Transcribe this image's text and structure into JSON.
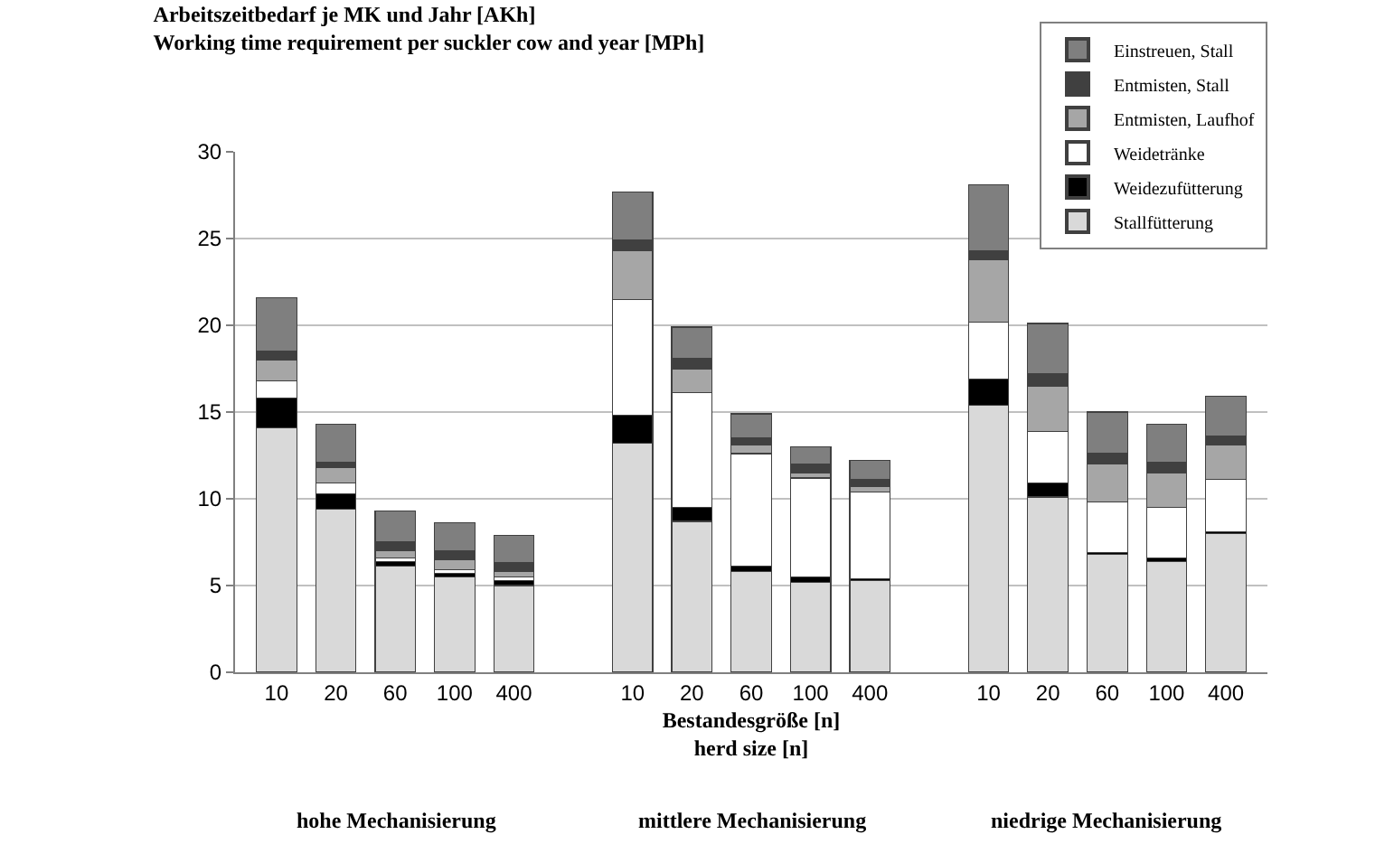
{
  "chart_data": {
    "type": "bar",
    "stacked": true,
    "title": "Arbeitszeitbedarf je MK und Jahr [AKh]\nWorking time requirement per suckler cow and year [MPh]",
    "xlabel": "Bestandesgröße [n]\nherd size [n]",
    "categories": [
      "10",
      "20",
      "60",
      "100",
      "400",
      null,
      "10",
      "20",
      "60",
      "100",
      "400",
      null,
      "10",
      "20",
      "60",
      "100",
      "400"
    ],
    "series": [
      {
        "name": "Stallfütterung",
        "color": "#d9d9d9",
        "values": [
          14.1,
          9.4,
          6.1,
          5.5,
          5.0,
          null,
          13.2,
          8.7,
          5.8,
          5.2,
          5.3,
          null,
          15.4,
          10.1,
          6.8,
          6.4,
          8.0
        ]
      },
      {
        "name": "Weidezufütterung",
        "color": "#000000",
        "values": [
          1.7,
          0.9,
          0.3,
          0.2,
          0.3,
          null,
          1.6,
          0.8,
          0.3,
          0.3,
          0.1,
          null,
          1.5,
          0.8,
          0.1,
          0.2,
          0.1
        ]
      },
      {
        "name": "Weidetränke",
        "color": "#ffffff",
        "values": [
          1.0,
          0.6,
          0.2,
          0.2,
          0.2,
          null,
          6.7,
          6.6,
          6.5,
          5.7,
          5.0,
          null,
          3.3,
          3.0,
          2.9,
          2.9,
          3.0
        ]
      },
      {
        "name": "Entmisten, Laufhof",
        "color": "#a6a6a6",
        "values": [
          1.2,
          0.9,
          0.4,
          0.6,
          0.3,
          null,
          2.8,
          1.4,
          0.5,
          0.3,
          0.3,
          null,
          3.6,
          2.6,
          2.2,
          2.0,
          2.0
        ]
      },
      {
        "name": "Entmisten, Stall",
        "color": "#404040",
        "values": [
          0.5,
          0.3,
          0.5,
          0.5,
          0.5,
          null,
          0.6,
          0.6,
          0.4,
          0.5,
          0.4,
          null,
          0.5,
          0.7,
          0.6,
          0.6,
          0.5
        ]
      },
      {
        "name": "Einstreuen, Stall",
        "color": "#7f7f7f",
        "values": [
          3.1,
          2.2,
          1.8,
          1.6,
          1.6,
          null,
          2.8,
          1.8,
          1.4,
          1.0,
          1.1,
          null,
          3.8,
          2.9,
          2.4,
          2.2,
          2.3
        ]
      }
    ],
    "ylim": [
      0,
      30
    ],
    "yticks": [
      0,
      5,
      10,
      15,
      20,
      25,
      30
    ],
    "grid": "y",
    "legend": "top right",
    "annotations": [
      "hohe Mechanisierung",
      "mittlere Mechanisierung",
      "niedrige Mechanisierung"
    ]
  }
}
